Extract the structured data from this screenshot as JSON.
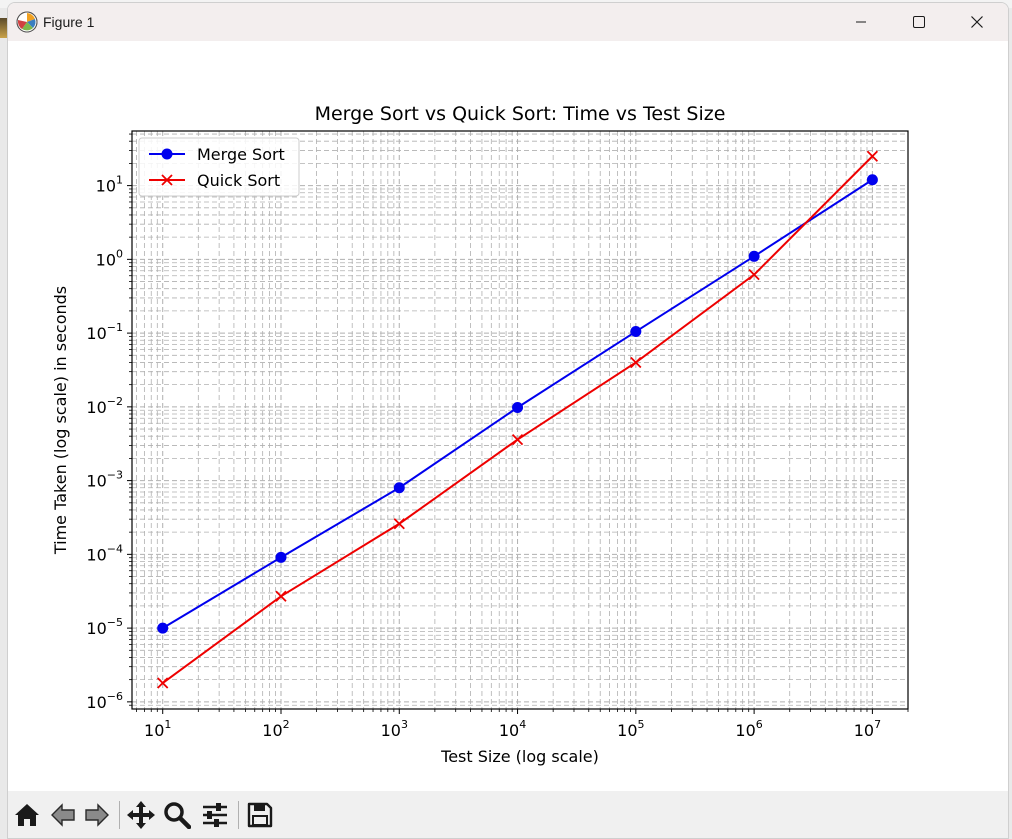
{
  "window": {
    "title": "Figure 1",
    "controls": [
      "minimize",
      "maximize",
      "close"
    ]
  },
  "toolbar": {
    "buttons": [
      "home-icon",
      "back-icon",
      "forward-icon",
      "pan-icon",
      "zoom-icon",
      "configure-subplots-icon",
      "save-icon"
    ]
  },
  "colors": {
    "merge": "#0000ee",
    "quick": "#ee0000",
    "grid": "#b0b0b0",
    "titlebar": "#f3eeee",
    "toolbar": "#f0f0f0"
  },
  "chart_data": {
    "type": "line",
    "title": "Merge Sort vs Quick Sort: Time vs Test Size",
    "xlabel": "Test Size (log scale)",
    "ylabel": "Time Taken (log scale) in seconds",
    "xscale": "log",
    "yscale": "log",
    "grid": "on (major and minor, dashed)",
    "legend": "top-left",
    "xlim": [
      5.5,
      20000000
    ],
    "ylim": [
      8e-07,
      55
    ],
    "x": [
      10,
      100,
      1000,
      10000,
      100000,
      1000000,
      10000000
    ],
    "xticks": [
      {
        "base": "10",
        "exp": "1"
      },
      {
        "base": "10",
        "exp": "2"
      },
      {
        "base": "10",
        "exp": "3"
      },
      {
        "base": "10",
        "exp": "4"
      },
      {
        "base": "10",
        "exp": "5"
      },
      {
        "base": "10",
        "exp": "6"
      },
      {
        "base": "10",
        "exp": "7"
      }
    ],
    "yticks": [
      {
        "base": "10",
        "exp": "1"
      },
      {
        "base": "10",
        "exp": "0"
      },
      {
        "base": "10",
        "exp": "−1"
      },
      {
        "base": "10",
        "exp": "−2"
      },
      {
        "base": "10",
        "exp": "−3"
      },
      {
        "base": "10",
        "exp": "−4"
      },
      {
        "base": "10",
        "exp": "−5"
      },
      {
        "base": "10",
        "exp": "−6"
      }
    ],
    "series": [
      {
        "name": "Merge Sort",
        "marker": "circle",
        "color": "#0000ee",
        "values": [
          1e-05,
          9.1e-05,
          0.0008,
          0.0098,
          0.105,
          1.1,
          12.0
        ]
      },
      {
        "name": "Quick Sort",
        "marker": "x",
        "color": "#ee0000",
        "values": [
          1.8e-06,
          2.7e-05,
          0.00026,
          0.0036,
          0.04,
          0.62,
          25.0
        ]
      }
    ]
  }
}
